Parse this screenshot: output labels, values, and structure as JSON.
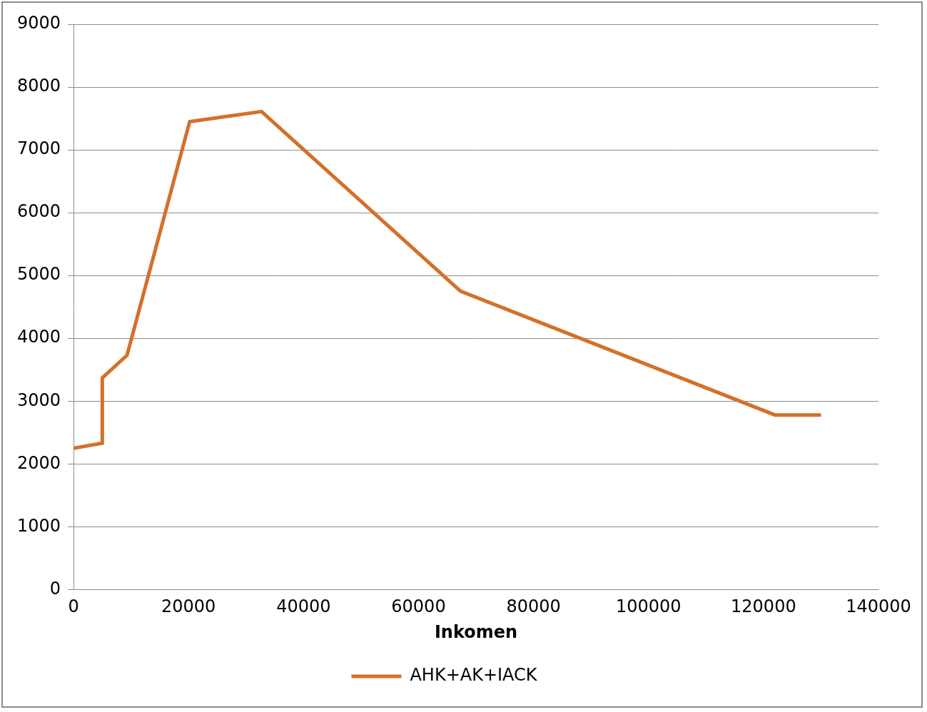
{
  "chart_data": {
    "type": "line",
    "x_label": "Inkomen",
    "x": [
      0,
      5000,
      5000,
      9300,
      20200,
      32700,
      67300,
      122000,
      130000
    ],
    "series": [
      {
        "name": "AHK+AK+IACK",
        "color": "#d4702a",
        "values": [
          2250,
          2330,
          3370,
          3730,
          7450,
          7610,
          4750,
          2780,
          2780
        ]
      }
    ],
    "xlim": [
      0,
      140000
    ],
    "xticks": [
      0,
      20000,
      40000,
      60000,
      80000,
      100000,
      120000,
      140000
    ],
    "ylim": [
      0,
      9000
    ],
    "yticks": [
      0,
      1000,
      2000,
      3000,
      4000,
      5000,
      6000,
      7000,
      8000,
      9000
    ],
    "grid": "y",
    "legend": "bottom"
  }
}
